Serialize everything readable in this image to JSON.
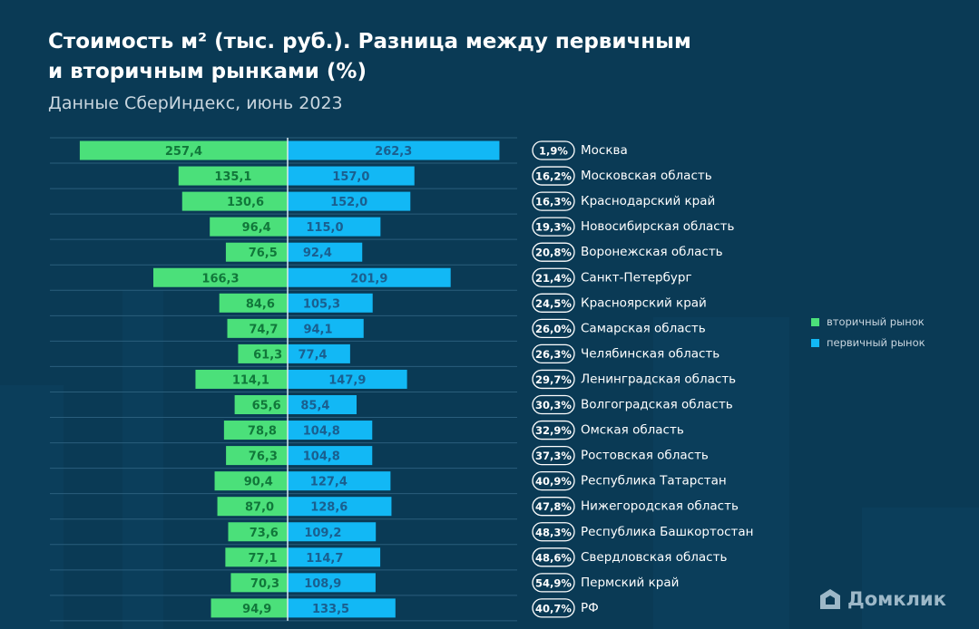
{
  "title_line1": "Стоимость м² (тыс. руб.). Разница между первичным",
  "title_line2": "и вторичным рынками (%)",
  "subtitle": "Данные СберИндекс, июнь 2023",
  "logo_text": "Домклик",
  "colors": {
    "background": "#0a3a55",
    "secondary": "#4be07a",
    "primary": "#12b8f5",
    "secondary_text": "#11773a",
    "primary_text": "#1a5f8f"
  },
  "chart_data": {
    "type": "bar",
    "orientation": "horizontal-diverging",
    "title": "Стоимость м² (тыс. руб.). Разница между первичным и вторичным рынками (%)",
    "subtitle": "Данные СберИндекс, июнь 2023",
    "legend_position": "right",
    "categories": [
      "Москва",
      "Московская область",
      "Краснодарский край",
      "Новосибирская область",
      "Воронежская область",
      "Санкт-Петербург",
      "Красноярский край",
      "Самарская область",
      "Челябинская область",
      "Ленинградская область",
      "Волгоградская область",
      "Омская область",
      "Ростовская область",
      "Республика Татарстан",
      "Нижегородская область",
      "Республика Башкортостан",
      "Свердловская область",
      "Пермский край",
      "РФ"
    ],
    "series": [
      {
        "name": "вторичный рынок",
        "values": [
          257.4,
          135.1,
          130.6,
          96.4,
          76.5,
          166.3,
          84.6,
          74.7,
          61.3,
          114.1,
          65.6,
          78.8,
          76.3,
          90.4,
          87.0,
          73.6,
          77.1,
          70.3,
          94.9
        ]
      },
      {
        "name": "первичный рынок",
        "values": [
          262.3,
          157.0,
          152.0,
          115.0,
          92.4,
          201.9,
          105.3,
          94.1,
          77.4,
          147.9,
          85.4,
          104.8,
          104.8,
          127.4,
          128.6,
          109.2,
          114.7,
          108.9,
          133.5
        ]
      }
    ],
    "difference_labels": [
      "1,9%",
      "16,2%",
      "16,3%",
      "19,3%",
      "20,8%",
      "21,4%",
      "24,5%",
      "26,0%",
      "26,3%",
      "29,7%",
      "30,3%",
      "32,9%",
      "37,3%",
      "40,9%",
      "47,8%",
      "48,3%",
      "48,6%",
      "54,9%",
      "40,7%"
    ],
    "value_labels_secondary": [
      "257,4",
      "135,1",
      "130,6",
      "96,4",
      "76,5",
      "166,3",
      "84,6",
      "74,7",
      "61,3",
      "114,1",
      "65,6",
      "78,8",
      "76,3",
      "90,4",
      "87,0",
      "73,6",
      "77,1",
      "70,3",
      "94,9"
    ],
    "value_labels_primary": [
      "262,3",
      "157,0",
      "152,0",
      "115,0",
      "92,4",
      "201,9",
      "105,3",
      "94,1",
      "77,4",
      "147,9",
      "85,4",
      "104,8",
      "104,8",
      "127,4",
      "128,6",
      "109,2",
      "114,7",
      "108,9",
      "133,5"
    ],
    "grid": false
  }
}
